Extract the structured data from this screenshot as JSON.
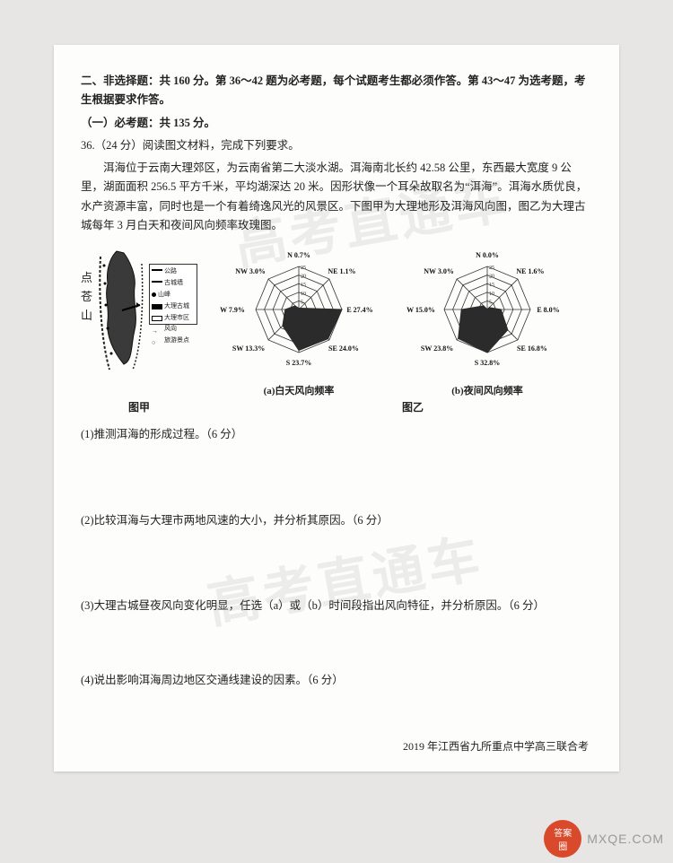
{
  "section": {
    "heading": "二、非选择题：共 160 分。第 36～42 题为必考题，每个试题考生都必须作答。第 43～47 为选考题，考生根据要求作答。",
    "sub1": "（一）必考题：共 135 分。",
    "q36": "36.（24 分）阅读图文材料，完成下列要求。",
    "passage": "洱海位于云南大理郊区，为云南省第二大淡水湖。洱海南北长约 42.58 公里，东西最大宽度 9 公里，湖面面积 256.5 平方千米，平均湖深达 20 米。因形状像一个耳朵故取名为“洱海”。洱海水质优良，水产资源丰富，同时也是一个有着绮逸风光的风景区。下图甲为大理地形及洱海风向图，图乙为大理古城每年 3 月白天和夜间风向频率玫瑰图。"
  },
  "mapside": {
    "c1": "点",
    "c2": "苍",
    "c3": "山"
  },
  "legend": {
    "r1": "公路",
    "r2": "古城墙",
    "r3": "山峰",
    "r4": "大理古城",
    "r5": "大理市区",
    "r6": "风向",
    "r7": "旅游景点"
  },
  "radarA": {
    "caption": "(a)白天风向频率",
    "dirs": [
      "N 0.7%",
      "NE 1.1%",
      "E 27.4%",
      "SE 24.0%",
      "S 23.7%",
      "SW 13.3%",
      "W 7.9%",
      "NW 3.0%"
    ],
    "values": [
      0.7,
      1.1,
      27.4,
      24.0,
      23.7,
      13.3,
      7.9,
      3.0
    ],
    "ticks": [
      5,
      10,
      15,
      20,
      25
    ],
    "fill": "#2b2b2b",
    "stroke": "#333",
    "bg": "#fdfdfb"
  },
  "radarB": {
    "caption": "(b)夜间风向频率",
    "dirs": [
      "N 0.0%",
      "NE 1.6%",
      "E 8.0%",
      "SE 16.8%",
      "S 32.8%",
      "SW 23.8%",
      "W 15.0%",
      "NW 3.0%"
    ],
    "values": [
      0.0,
      1.6,
      8.0,
      16.8,
      32.8,
      23.8,
      15.0,
      3.0
    ],
    "ticks": [
      5,
      10,
      15,
      20,
      25
    ],
    "fill": "#2b2b2b",
    "stroke": "#333",
    "bg": "#fdfdfb"
  },
  "figcap": {
    "left": "图甲",
    "right": "图乙"
  },
  "subq": {
    "q1": "(1)推测洱海的形成过程。（6 分）",
    "q2": "(2)比较洱海与大理市两地风速的大小，并分析其原因。（6 分）",
    "q3": "(3)大理古城昼夜风向变化明显，任选（a）或（b）时间段指出风向特征，并分析原因。（6 分）",
    "q4": "(4)说出影响洱海周边地区交通线建设的因素。（6 分）"
  },
  "footer": "2019 年江西省九所重点中学高三联合考",
  "watermark": "高考直通车",
  "badge": {
    "top": "答案",
    "bot": "圈",
    "site": "MXQE.COM"
  }
}
